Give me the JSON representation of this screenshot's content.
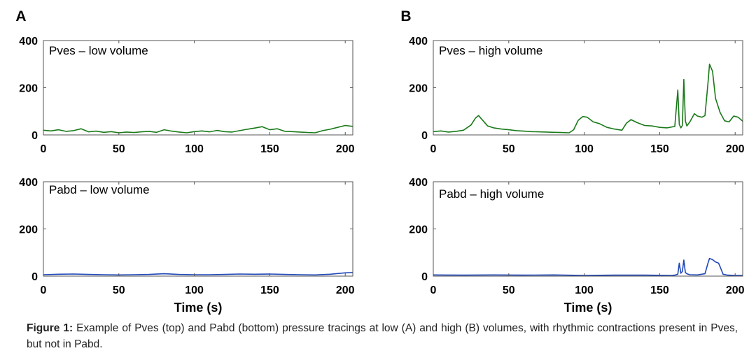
{
  "panel_labels": [
    "A",
    "B"
  ],
  "xlabel": "Time (s)",
  "caption": {
    "label": "Figure 1:",
    "text": " Example of Pves (top) and Pabd (bottom) pressure tracings at low (A) and high (B) volumes, with rhythmic contractions present in Pves, but not in Pabd."
  },
  "colors": {
    "pves": "#1a7a1a",
    "pabd": "#1f47b8"
  },
  "chart_data": [
    {
      "id": "A-top",
      "type": "line",
      "title": "Pves – low volume",
      "xlim": [
        0,
        205
      ],
      "ylim": [
        0,
        400
      ],
      "xticks": [
        0,
        50,
        100,
        150,
        200
      ],
      "yticks": [
        0,
        200,
        400
      ],
      "series": [
        {
          "color": "#1a7a1a",
          "x": [
            0,
            5,
            10,
            15,
            20,
            25,
            30,
            35,
            40,
            45,
            50,
            55,
            60,
            65,
            70,
            75,
            80,
            85,
            90,
            95,
            100,
            105,
            110,
            115,
            120,
            125,
            130,
            135,
            140,
            145,
            150,
            155,
            160,
            165,
            170,
            175,
            180,
            185,
            190,
            195,
            200,
            205
          ],
          "y": [
            20,
            17,
            22,
            15,
            18,
            26,
            13,
            16,
            11,
            14,
            9,
            12,
            10,
            13,
            15,
            11,
            22,
            16,
            12,
            9,
            14,
            17,
            13,
            19,
            14,
            12,
            18,
            24,
            29,
            35,
            22,
            26,
            15,
            14,
            12,
            10,
            9,
            18,
            24,
            32,
            40,
            36
          ]
        }
      ]
    },
    {
      "id": "A-bottom",
      "type": "line",
      "title": "Pabd – low volume",
      "xlabel": "Time (s)",
      "xlim": [
        0,
        205
      ],
      "ylim": [
        0,
        400
      ],
      "xticks": [
        0,
        50,
        100,
        150,
        200
      ],
      "yticks": [
        0,
        200,
        400
      ],
      "series": [
        {
          "color": "#1f47b8",
          "x": [
            0,
            10,
            20,
            30,
            40,
            50,
            60,
            70,
            80,
            90,
            100,
            110,
            120,
            130,
            140,
            150,
            160,
            170,
            180,
            190,
            195,
            200,
            205
          ],
          "y": [
            6,
            8,
            9,
            7,
            6,
            5,
            6,
            7,
            10,
            7,
            6,
            6,
            7,
            9,
            8,
            9,
            7,
            6,
            5,
            8,
            11,
            14,
            15
          ]
        }
      ]
    },
    {
      "id": "B-top",
      "type": "line",
      "title": "Pves – high volume",
      "xlim": [
        0,
        205
      ],
      "ylim": [
        0,
        400
      ],
      "xticks": [
        0,
        50,
        100,
        150,
        200
      ],
      "yticks": [
        0,
        200,
        400
      ],
      "series": [
        {
          "color": "#1a7a1a",
          "x": [
            0,
            5,
            10,
            15,
            20,
            25,
            28,
            30,
            33,
            36,
            40,
            45,
            50,
            55,
            60,
            65,
            70,
            75,
            80,
            85,
            90,
            93,
            96,
            99,
            102,
            106,
            110,
            115,
            120,
            125,
            128,
            131,
            135,
            140,
            145,
            150,
            155,
            160,
            162,
            163,
            164,
            165,
            166,
            167,
            168,
            170,
            173,
            175,
            178,
            180,
            182,
            183,
            185,
            187,
            190,
            193,
            196,
            199,
            202,
            205
          ],
          "y": [
            14,
            17,
            12,
            15,
            20,
            42,
            72,
            82,
            60,
            38,
            30,
            25,
            22,
            18,
            16,
            14,
            13,
            12,
            11,
            10,
            9,
            22,
            62,
            78,
            75,
            55,
            48,
            32,
            25,
            20,
            50,
            65,
            52,
            40,
            38,
            32,
            30,
            36,
            190,
            45,
            30,
            40,
            235,
            60,
            38,
            55,
            90,
            80,
            75,
            82,
            220,
            300,
            270,
            155,
            95,
            60,
            55,
            80,
            75,
            58
          ]
        }
      ]
    },
    {
      "id": "B-bottom",
      "type": "line",
      "title": "Pabd – high volume",
      "xlabel": "Time (s)",
      "xlim": [
        0,
        205
      ],
      "ylim": [
        0,
        400
      ],
      "xticks": [
        0,
        50,
        100,
        150,
        200
      ],
      "yticks": [
        0,
        200,
        400
      ],
      "series": [
        {
          "color": "#1f47b8",
          "x": [
            0,
            20,
            40,
            60,
            80,
            100,
            120,
            140,
            158,
            160,
            162,
            163,
            164,
            165,
            166,
            167,
            168,
            170,
            175,
            180,
            182,
            183,
            185,
            187,
            189,
            190,
            192,
            195,
            200,
            205
          ],
          "y": [
            5,
            4,
            5,
            4,
            5,
            3,
            4,
            4,
            3,
            4,
            8,
            55,
            12,
            20,
            68,
            15,
            10,
            6,
            5,
            10,
            55,
            75,
            70,
            60,
            55,
            40,
            8,
            4,
            3,
            3
          ]
        }
      ]
    }
  ]
}
